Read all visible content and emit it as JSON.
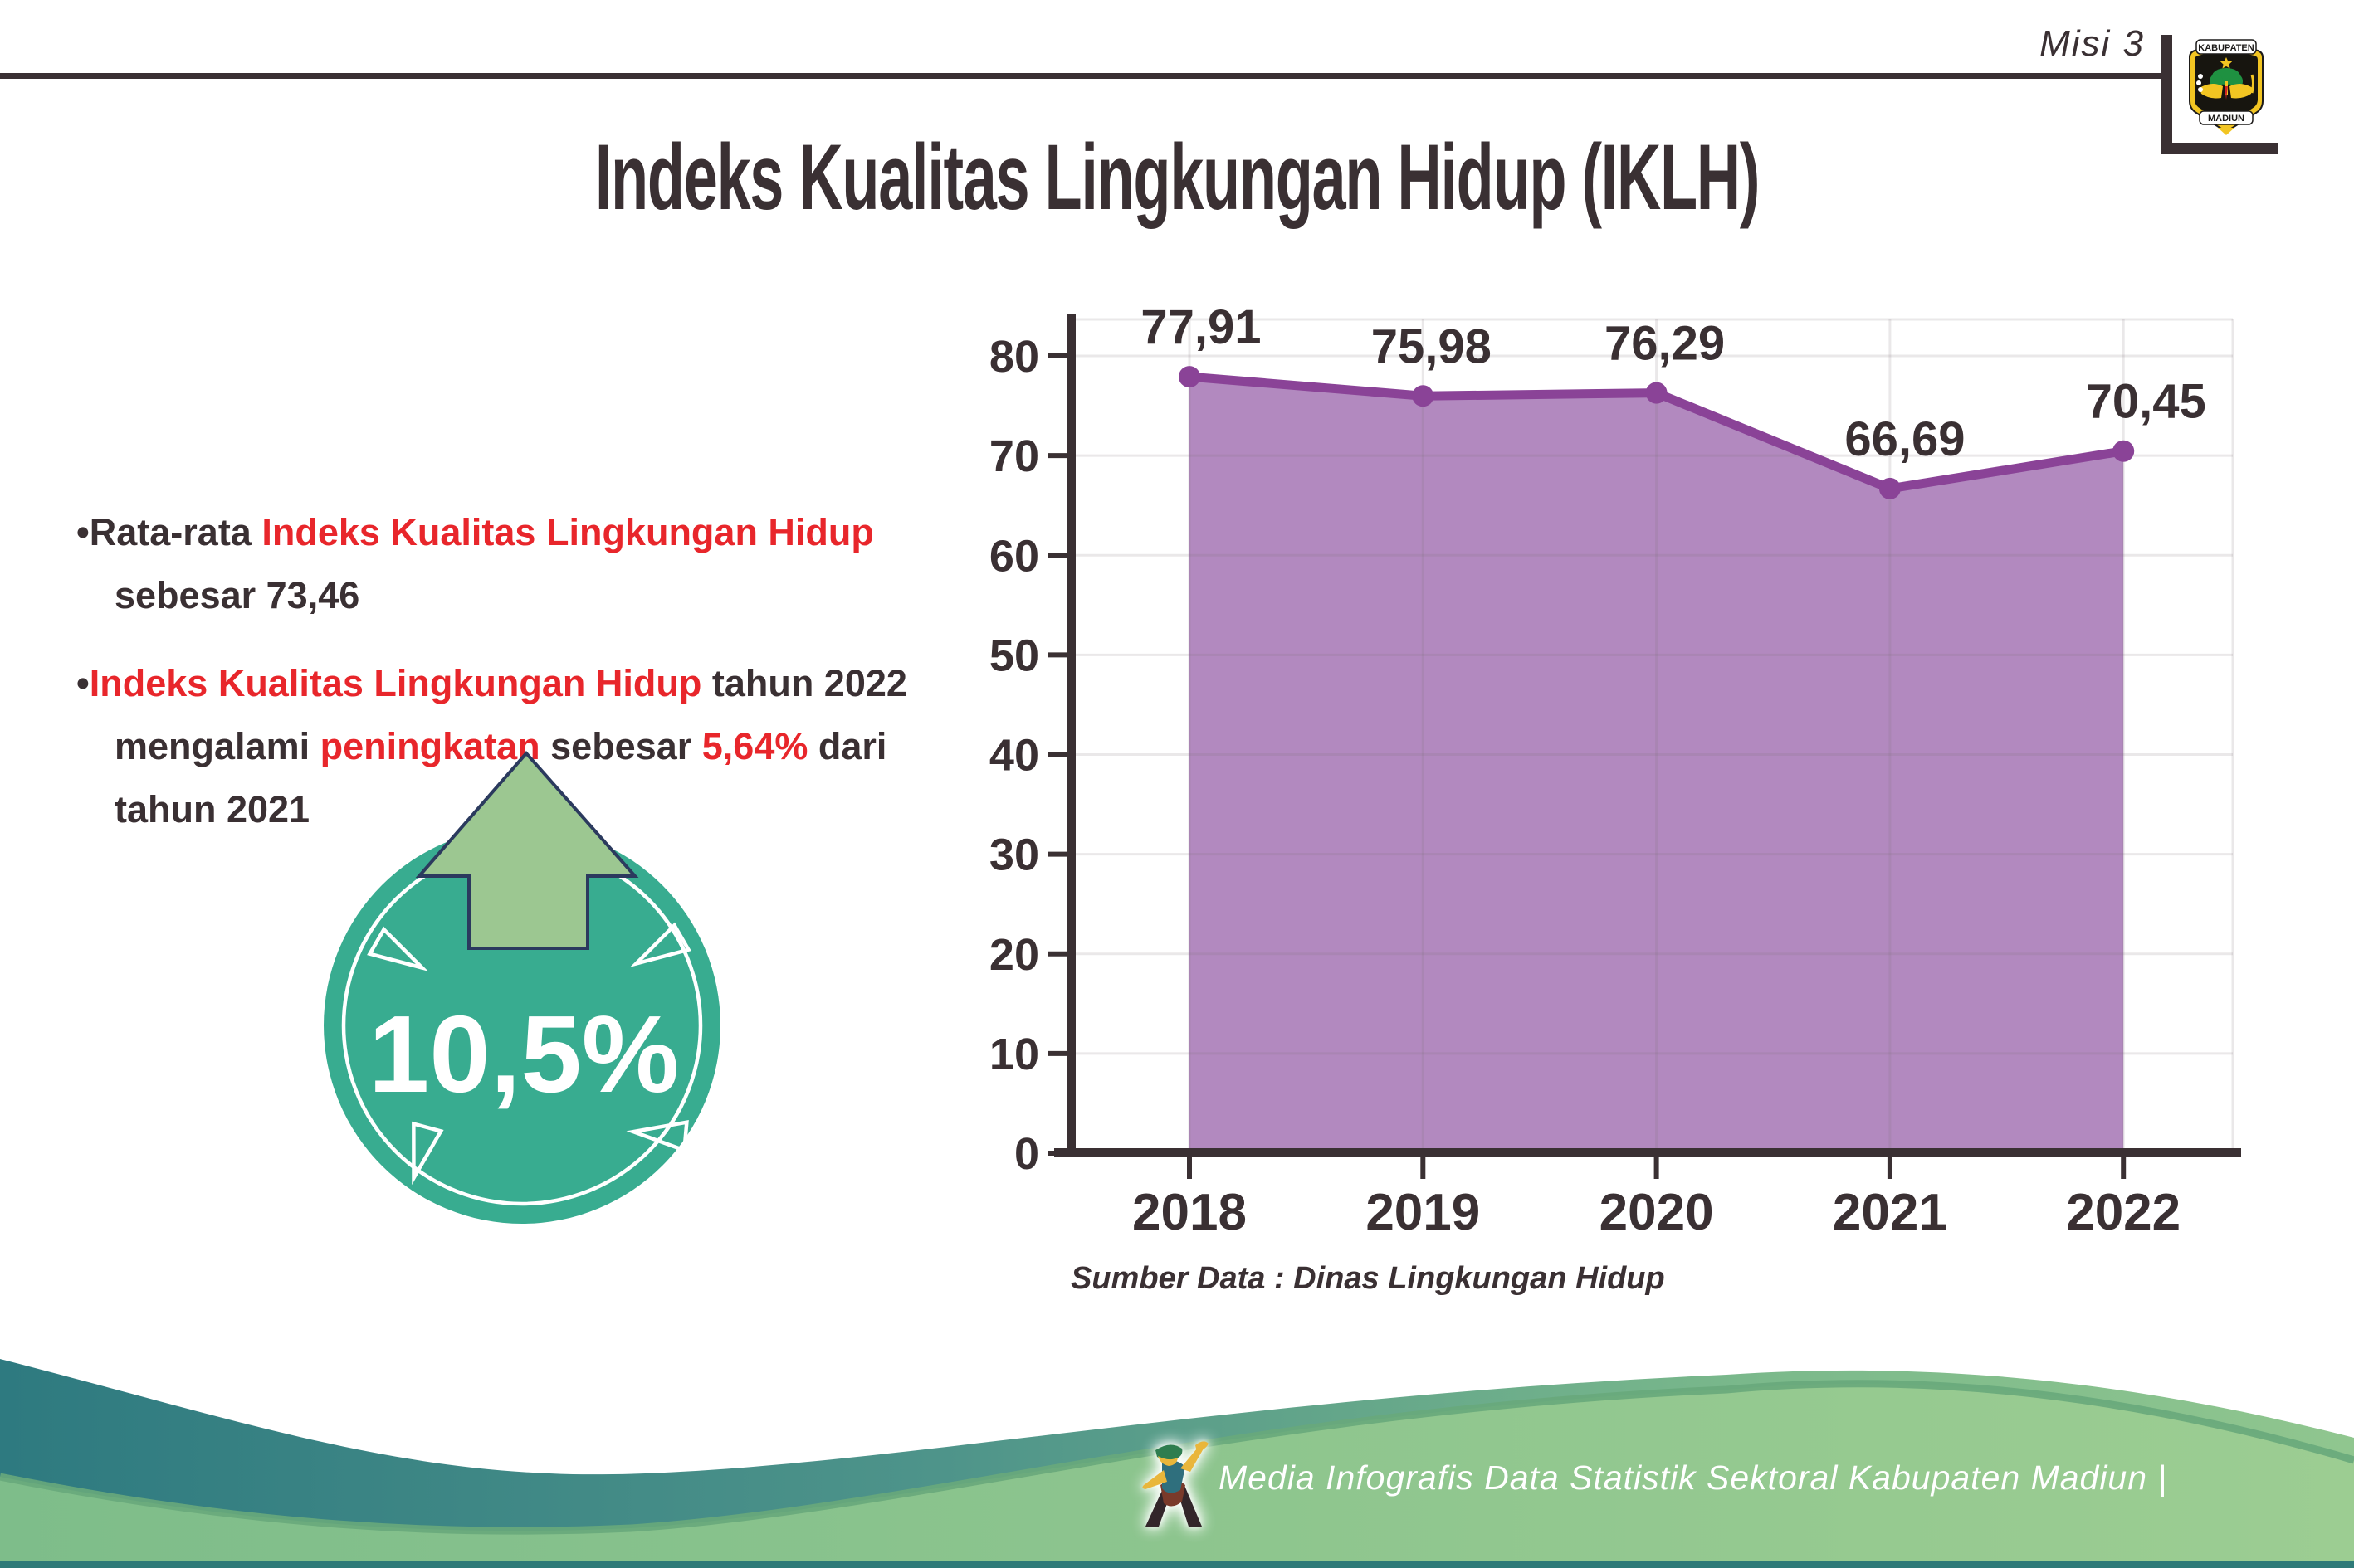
{
  "header": {
    "misi": "Misi 3",
    "title": "Indeks Kualitas Lingkungan Hidup (IKLH)",
    "logo": {
      "banner_top": "KABUPATEN",
      "banner_bottom": "MADIUN"
    }
  },
  "bullets": {
    "items": [
      {
        "lines": [
          [
            {
              "t": "•",
              "c": "d"
            },
            {
              "t": "Rata-rata ",
              "c": "d"
            },
            {
              "t": "Indeks Kualitas Lingkungan Hidup",
              "c": "r"
            }
          ],
          [
            {
              "t": "sebesar 73,46",
              "c": "d"
            }
          ]
        ]
      },
      {
        "lines": [
          [
            {
              "t": "•",
              "c": "d"
            },
            {
              "t": "Indeks Kualitas Lingkungan Hidup",
              "c": "r"
            },
            {
              "t": " tahun 2022",
              "c": "d"
            }
          ],
          [
            {
              "t": "mengalami ",
              "c": "d"
            },
            {
              "t": "peningkatan",
              "c": "r"
            },
            {
              "t": " sebesar ",
              "c": "d"
            },
            {
              "t": "5,64%",
              "c": "r"
            },
            {
              "t": " dari",
              "c": "d"
            }
          ],
          [
            {
              "t": "tahun 2021",
              "c": "d"
            }
          ]
        ]
      }
    ]
  },
  "badge": {
    "value": "10,5%",
    "circle_color": "#38ac90",
    "arrow_color": "#9cc791"
  },
  "chart_data": {
    "type": "area",
    "categories": [
      "2018",
      "2019",
      "2020",
      "2021",
      "2022"
    ],
    "values": [
      77.91,
      75.98,
      76.29,
      66.69,
      70.45
    ],
    "labels": [
      "77,91",
      "75,98",
      "76,29",
      "66,69",
      "70,45"
    ],
    "xlabel": "",
    "ylabel": "",
    "ylim": [
      0,
      80
    ],
    "ytick_step": 10,
    "grid": true,
    "legend": false,
    "source": "Sumber Data : Dinas Lingkungan Hidup",
    "colors": {
      "area": "#b289bf",
      "line": "#8a4397",
      "marker": "#8a4397",
      "axis": "#3a3033",
      "grid": "rgba(125,115,120,0.16)",
      "label": "#3a3033"
    }
  },
  "footer": {
    "credit": "Media Infografis Data Statistik Sektoral Kabupaten Madiun |",
    "teal": "#2e7a80",
    "green": "#84c08d"
  }
}
